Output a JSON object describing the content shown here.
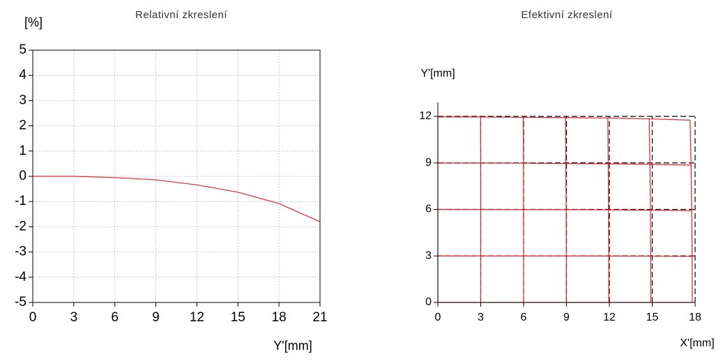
{
  "chart_data": [
    {
      "type": "line",
      "title": "Relativní zkreslení",
      "y_label": "[%]",
      "x_label": "Y'[mm]",
      "x": [
        0,
        3,
        6,
        9,
        12,
        15,
        18,
        21
      ],
      "series": [
        {
          "color": "#e8202a",
          "values": [
            0,
            0,
            -0.05,
            -0.14,
            -0.34,
            -0.63,
            -1.08,
            -1.8
          ]
        }
      ],
      "xlim": [
        0,
        21
      ],
      "xticks": [
        0,
        3,
        6,
        9,
        12,
        15,
        18,
        21
      ],
      "ylim": [
        -5,
        5
      ],
      "yticks": [
        -5,
        -4,
        -3,
        -2,
        -1,
        0,
        1,
        2,
        3,
        4,
        5
      ],
      "grid": true
    },
    {
      "type": "distortion-grid",
      "title": "Efektivní zkreslení",
      "y_label": "Y'[mm]",
      "x_label": "X'[mm]",
      "xlim": [
        0,
        18
      ],
      "xticks": [
        0,
        3,
        6,
        9,
        12,
        15,
        18
      ],
      "ylim": [
        0,
        12
      ],
      "yticks": [
        0,
        3,
        6,
        9,
        12
      ],
      "series": [
        {
          "color": "#000000",
          "dashed": true,
          "lines": [
            {
              "x": [
                0,
                18
              ],
              "y": [
                3,
                3
              ]
            },
            {
              "x": [
                0,
                18
              ],
              "y": [
                6,
                6
              ]
            },
            {
              "x": [
                0,
                18
              ],
              "y": [
                9,
                9
              ]
            },
            {
              "x": [
                0,
                18
              ],
              "y": [
                12,
                12
              ]
            },
            {
              "x": [
                3,
                3
              ],
              "y": [
                0,
                12
              ]
            },
            {
              "x": [
                6,
                6
              ],
              "y": [
                0,
                12
              ]
            },
            {
              "x": [
                9,
                9
              ],
              "y": [
                0,
                12
              ]
            },
            {
              "x": [
                12,
                12
              ],
              "y": [
                0,
                12
              ]
            },
            {
              "x": [
                15,
                15
              ],
              "y": [
                0,
                12
              ]
            },
            {
              "x": [
                18,
                18
              ],
              "y": [
                0,
                12
              ]
            }
          ]
        },
        {
          "color": "#e8202a",
          "dashed": false,
          "lines": [
            {
              "x": [
                0,
                3,
                6,
                8.99,
                11.96,
                14.9,
                17.8
              ],
              "y": [
                0,
                0,
                0,
                0,
                0,
                0,
                0
              ]
            },
            {
              "x": [
                0,
                3,
                6,
                8.99,
                11.96,
                14.9,
                17.79
              ],
              "y": [
                3,
                3,
                3,
                3,
                2.99,
                2.98,
                2.97
              ]
            },
            {
              "x": [
                0,
                3,
                5.99,
                8.98,
                11.94,
                14.88,
                17.76
              ],
              "y": [
                6,
                6,
                5.99,
                5.99,
                5.97,
                5.95,
                5.92
              ]
            },
            {
              "x": [
                0,
                3,
                5.99,
                8.96,
                11.92,
                14.84,
                17.72
              ],
              "y": [
                8.99,
                8.99,
                8.98,
                8.96,
                8.94,
                8.91,
                8.86
              ]
            },
            {
              "x": [
                0,
                2.99,
                5.97,
                8.94,
                11.89,
                14.79,
                17.65
              ],
              "y": [
                11.96,
                11.96,
                11.94,
                11.92,
                11.89,
                11.84,
                11.76
              ]
            },
            {
              "x": [
                0,
                0,
                0,
                0,
                0
              ],
              "y": [
                0,
                3,
                6,
                8.99,
                11.96
              ]
            },
            {
              "x": [
                3,
                3,
                3,
                3,
                2.99
              ],
              "y": [
                0,
                3,
                6,
                8.99,
                11.96
              ]
            },
            {
              "x": [
                6,
                6,
                5.99,
                5.99,
                5.97
              ],
              "y": [
                0,
                3,
                5.99,
                8.98,
                11.94
              ]
            },
            {
              "x": [
                8.99,
                8.99,
                8.98,
                8.96,
                8.94
              ],
              "y": [
                0,
                3,
                5.99,
                8.96,
                11.92
              ]
            },
            {
              "x": [
                11.96,
                11.96,
                11.94,
                11.92,
                11.89
              ],
              "y": [
                0,
                2.99,
                5.97,
                8.94,
                11.89
              ]
            },
            {
              "x": [
                14.9,
                14.9,
                14.88,
                14.84,
                14.79
              ],
              "y": [
                0,
                2.98,
                5.95,
                8.91,
                11.84
              ]
            },
            {
              "x": [
                17.8,
                17.79,
                17.76,
                17.72,
                17.65
              ],
              "y": [
                0,
                2.97,
                5.92,
                8.86,
                11.76
              ]
            }
          ]
        }
      ]
    }
  ]
}
